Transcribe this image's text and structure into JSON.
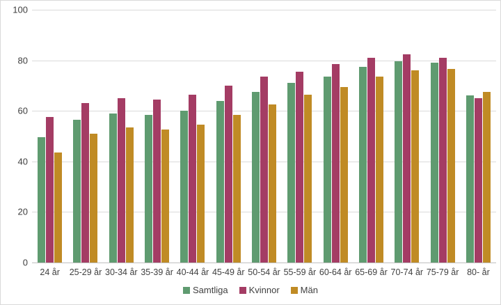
{
  "chart_data": {
    "type": "bar",
    "title": "",
    "xlabel": "",
    "ylabel": "",
    "ylim": [
      0,
      100
    ],
    "yticks": [
      0,
      20,
      40,
      60,
      80,
      100
    ],
    "grid": true,
    "legend_position": "bottom-center",
    "categories": [
      "24 år",
      "25-29 år",
      "30-34 år",
      "35-39 år",
      "40-44 år",
      "45-49 år",
      "50-54 år",
      "55-59 år",
      "60-64 år",
      "65-69 år",
      "70-74 år",
      "75-79 år",
      "80- år"
    ],
    "series": [
      {
        "name": "Samtliga",
        "color": "#5f9b70",
        "values": [
          49.5,
          56.5,
          59.0,
          58.5,
          60.0,
          64.0,
          67.5,
          71.0,
          73.5,
          77.5,
          79.5,
          79.0,
          66.0
        ]
      },
      {
        "name": "Kvinnor",
        "color": "#a43c64",
        "values": [
          57.5,
          63.0,
          65.0,
          64.5,
          66.5,
          70.0,
          73.5,
          75.5,
          78.5,
          81.0,
          82.5,
          81.0,
          65.0
        ]
      },
      {
        "name": "Män",
        "color": "#c08b25",
        "values": [
          43.5,
          51.0,
          53.5,
          52.5,
          54.5,
          58.5,
          62.5,
          66.5,
          69.5,
          73.5,
          76.0,
          76.5,
          67.5
        ]
      }
    ]
  },
  "colors": {
    "background": "#ffffff",
    "border": "#d9d9d9",
    "gridline": "#d9d9d9",
    "axis_line": "#bfbfbf",
    "text": "#404040"
  }
}
